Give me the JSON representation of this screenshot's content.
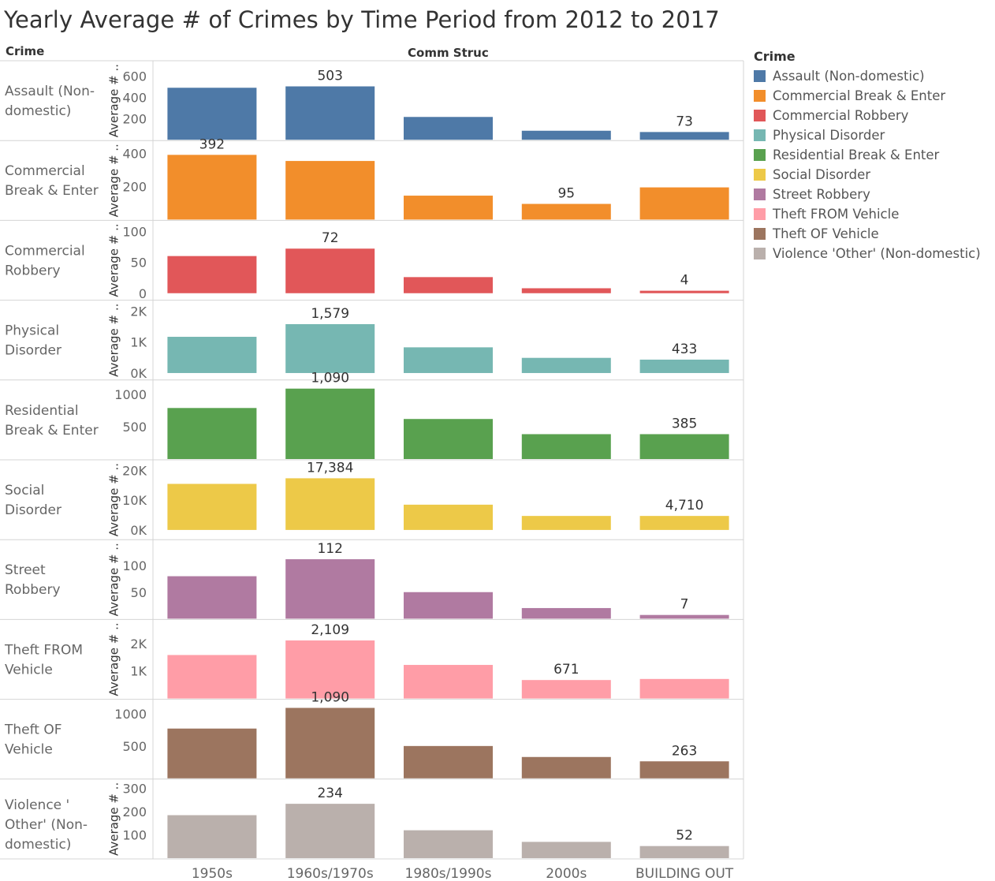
{
  "title": "Yearly Average # of Crimes by Time Period from 2012 to 2017",
  "row_header": "Crime",
  "column_header": "Comm Struc",
  "legend": {
    "title": "Crime",
    "items": [
      {
        "label": "Assault (Non-domestic)",
        "color": "#4e79a7"
      },
      {
        "label": "Commercial Break & Enter",
        "color": "#f28e2b"
      },
      {
        "label": "Commercial Robbery",
        "color": "#e15759"
      },
      {
        "label": "Physical Disorder",
        "color": "#76b7b2"
      },
      {
        "label": "Residential Break & Enter",
        "color": "#59a14f"
      },
      {
        "label": "Social Disorder",
        "color": "#edc948"
      },
      {
        "label": "Street Robbery",
        "color": "#b07aa1"
      },
      {
        "label": "Theft FROM Vehicle",
        "color": "#ff9da7"
      },
      {
        "label": "Theft OF Vehicle",
        "color": "#9c755f"
      },
      {
        "label": "Violence  'Other' (Non-domestic)",
        "color": "#bab0ac"
      }
    ]
  },
  "chart_data": {
    "type": "bar",
    "title": "Yearly Average # of Crimes by Time Period from 2012 to 2017",
    "xlabel": "Comm Struc",
    "categories": [
      "1950s",
      "1960s/1970s",
      "1980s/1990s",
      "2000s",
      "BUILDING OUT"
    ],
    "series": [
      {
        "name": "Assault (Non-domestic)",
        "row_label": [
          "Assault (Non-",
          "domestic)"
        ],
        "axis_label": "Average # ..",
        "values": [
          490,
          503,
          215,
          85,
          73
        ],
        "ylim": [
          0,
          700
        ],
        "ticks": [
          200,
          400,
          600
        ],
        "tick_labels": [
          "200",
          "400",
          "600"
        ],
        "labels": {
          "1": "503",
          "4": "73"
        },
        "color": "#4e79a7"
      },
      {
        "name": "Commercial Break & Enter",
        "row_label": [
          "Commercial",
          "Break & Enter"
        ],
        "axis_label": "Average # ..",
        "values": [
          392,
          355,
          145,
          95,
          195
        ],
        "ylim": [
          0,
          450
        ],
        "ticks": [
          200,
          400
        ],
        "tick_labels": [
          "200",
          "400"
        ],
        "labels": {
          "0": "392",
          "3": "95"
        },
        "color": "#f28e2b"
      },
      {
        "name": "Commercial Robbery",
        "row_label": [
          "Commercial",
          "Robbery"
        ],
        "axis_label": "Average # ..",
        "values": [
          60,
          72,
          26,
          8,
          4
        ],
        "ylim": [
          -10,
          110
        ],
        "ticks": [
          0,
          50,
          100
        ],
        "tick_labels": [
          "0",
          "50",
          "100"
        ],
        "labels": {
          "1": "72",
          "4": "4"
        },
        "color": "#e15759"
      },
      {
        "name": "Physical Disorder",
        "row_label": [
          "Physical",
          "Disorder"
        ],
        "axis_label": "Average # ..",
        "values": [
          1170,
          1579,
          830,
          490,
          433
        ],
        "ylim": [
          -200,
          2200
        ],
        "ticks": [
          0,
          1000,
          2000
        ],
        "tick_labels": [
          "0K",
          "1K",
          "2K"
        ],
        "labels": {
          "1": "1,579",
          "4": "433"
        },
        "color": "#76b7b2"
      },
      {
        "name": "Residential Break & Enter",
        "row_label": [
          "Residential",
          "Break & Enter"
        ],
        "axis_label": "",
        "values": [
          790,
          1090,
          620,
          385,
          385
        ],
        "ylim": [
          0,
          1150
        ],
        "ticks": [
          500,
          1000
        ],
        "tick_labels": [
          "500",
          "1000"
        ],
        "labels": {
          "1": "1,090",
          "4": "385"
        },
        "color": "#59a14f"
      },
      {
        "name": "Social Disorder",
        "row_label": [
          "Social",
          "Disorder"
        ],
        "axis_label": "Average # ..",
        "values": [
          15500,
          17384,
          8500,
          4710,
          4710
        ],
        "ylim": [
          -3000,
          22000
        ],
        "ticks": [
          0,
          10000,
          20000
        ],
        "tick_labels": [
          "0K",
          "10K",
          "20K"
        ],
        "labels": {
          "1": "17,384",
          "4": "4,710"
        },
        "color": "#edc948"
      },
      {
        "name": "Street Robbery",
        "row_label": [
          "Street",
          "Robbery"
        ],
        "axis_label": "Average # ..",
        "values": [
          80,
          112,
          50,
          20,
          7
        ],
        "ylim": [
          0,
          140
        ],
        "ticks": [
          50,
          100
        ],
        "tick_labels": [
          "50",
          "100"
        ],
        "labels": {
          "1": "112",
          "4": "7"
        },
        "color": "#b07aa1"
      },
      {
        "name": "Theft FROM Vehicle",
        "row_label": [
          "Theft FROM",
          "Vehicle"
        ],
        "axis_label": "Average # ..",
        "values": [
          1580,
          2109,
          1220,
          671,
          710
        ],
        "ylim": [
          0,
          2700
        ],
        "ticks": [
          1000,
          2000
        ],
        "tick_labels": [
          "1K",
          "2K"
        ],
        "labels": {
          "1": "2,109",
          "3": "671"
        },
        "color": "#ff9da7"
      },
      {
        "name": "Theft OF Vehicle",
        "row_label": [
          "Theft OF",
          "Vehicle"
        ],
        "axis_label": "",
        "values": [
          770,
          1090,
          500,
          330,
          263
        ],
        "ylim": [
          0,
          1150
        ],
        "ticks": [
          500,
          1000
        ],
        "tick_labels": [
          "500",
          "1000"
        ],
        "labels": {
          "1": "1,090",
          "4": "263"
        },
        "color": "#9c755f"
      },
      {
        "name": "Violence  'Other' (Non-domestic)",
        "row_label": [
          "Violence  '",
          "Other' (Non-",
          "domestic)"
        ],
        "axis_label": "Average # ..",
        "values": [
          185,
          234,
          120,
          70,
          52
        ],
        "ylim": [
          0,
          320
        ],
        "ticks": [
          100,
          200,
          300
        ],
        "tick_labels": [
          "100",
          "200",
          "300"
        ],
        "labels": {
          "1": "234",
          "4": "52"
        },
        "color": "#bab0ac"
      }
    ]
  }
}
